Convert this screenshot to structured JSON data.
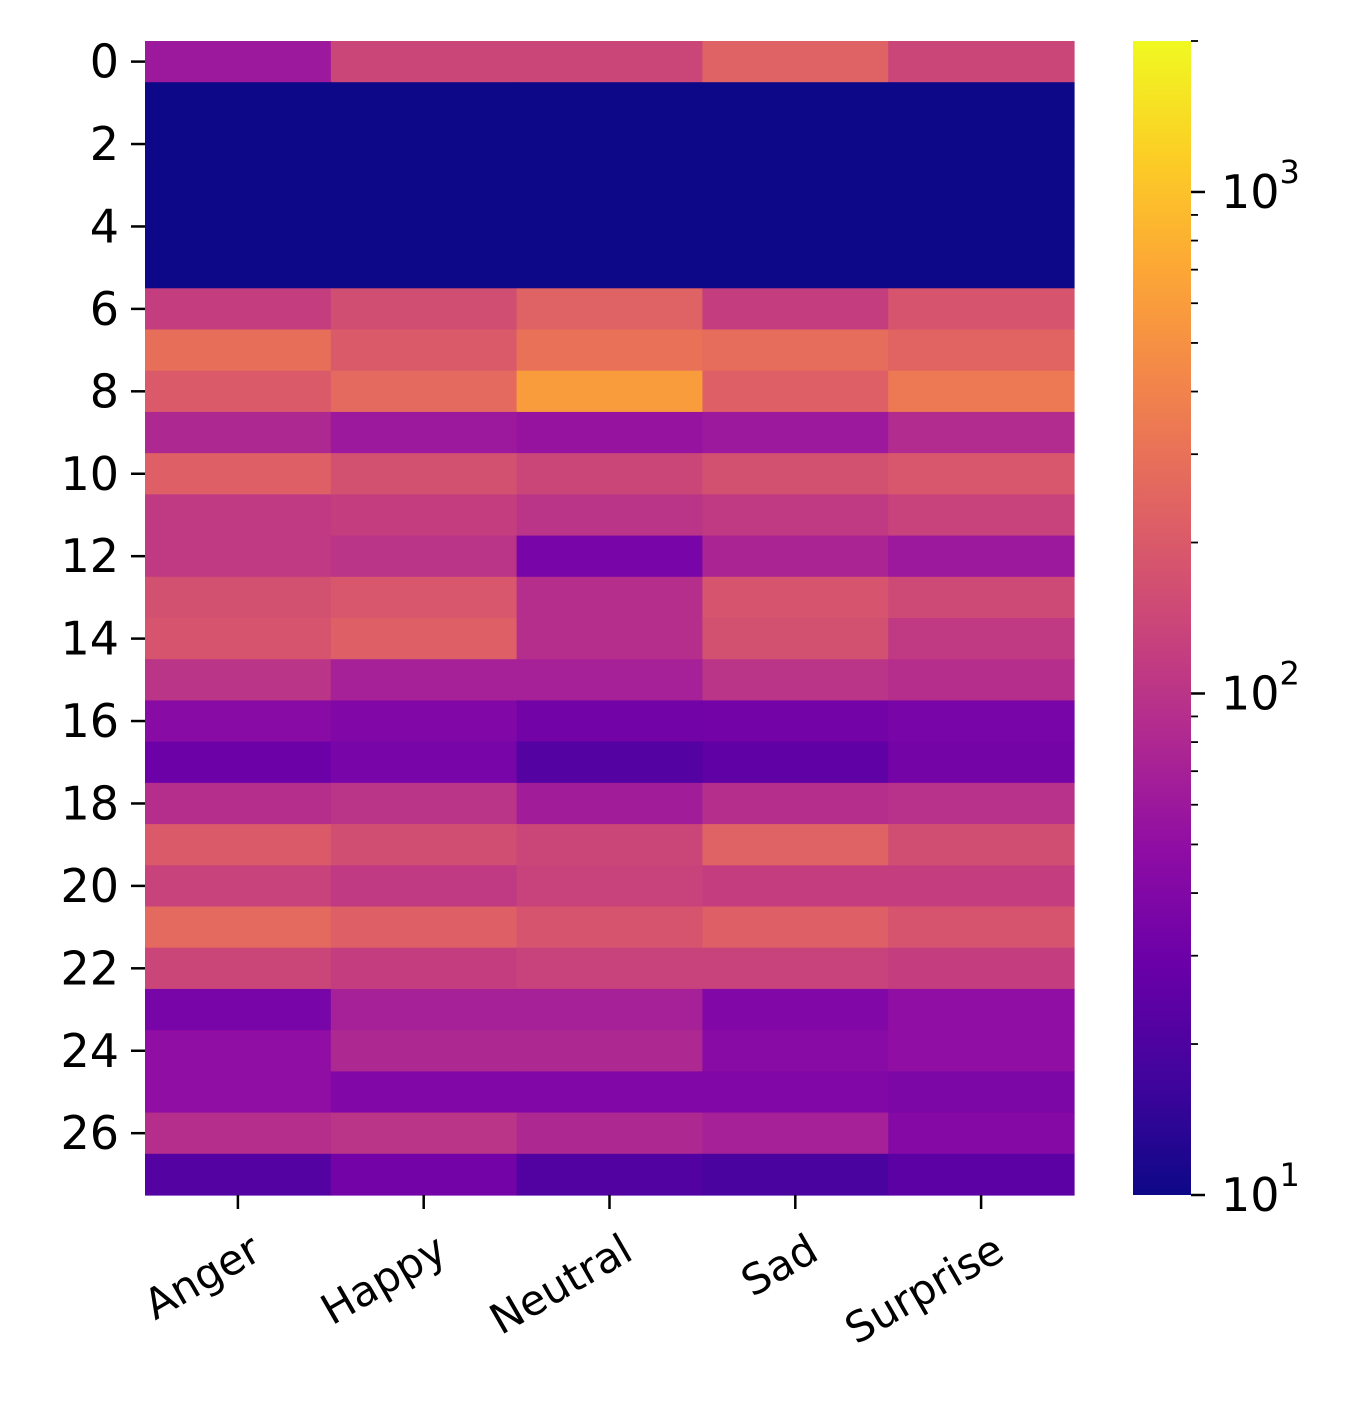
{
  "chart_data": {
    "type": "heatmap",
    "title": "",
    "xlabel": "",
    "ylabel": "",
    "x_categories": [
      "Anger",
      "Happy",
      "Neutral",
      "Sad",
      "Surprise"
    ],
    "y_categories": [
      0,
      1,
      2,
      3,
      4,
      5,
      6,
      7,
      8,
      9,
      10,
      11,
      12,
      13,
      14,
      15,
      16,
      17,
      18,
      19,
      20,
      21,
      22,
      23,
      24,
      25,
      26,
      27
    ],
    "y_tick_labels": [
      "0",
      "2",
      "4",
      "6",
      "8",
      "10",
      "12",
      "14",
      "16",
      "18",
      "20",
      "22",
      "24",
      "26"
    ],
    "values": [
      [
        60,
        140,
        140,
        230,
        140
      ],
      [
        10,
        10,
        10,
        10,
        10
      ],
      [
        10,
        10,
        10,
        10,
        10
      ],
      [
        10,
        10,
        10,
        10,
        10
      ],
      [
        10,
        10,
        10,
        10,
        10
      ],
      [
        10,
        10,
        10,
        10,
        10
      ],
      [
        120,
        160,
        230,
        120,
        180
      ],
      [
        290,
        200,
        300,
        280,
        240
      ],
      [
        200,
        260,
        600,
        220,
        340
      ],
      [
        80,
        60,
        55,
        60,
        85
      ],
      [
        220,
        170,
        140,
        170,
        190
      ],
      [
        110,
        120,
        100,
        110,
        130
      ],
      [
        110,
        100,
        35,
        75,
        60
      ],
      [
        170,
        190,
        90,
        180,
        150
      ],
      [
        180,
        220,
        90,
        170,
        110
      ],
      [
        100,
        70,
        70,
        100,
        90
      ],
      [
        45,
        40,
        32,
        33,
        35
      ],
      [
        30,
        35,
        22,
        25,
        34
      ],
      [
        90,
        100,
        65,
        90,
        95
      ],
      [
        200,
        160,
        140,
        230,
        160
      ],
      [
        130,
        110,
        130,
        120,
        120
      ],
      [
        260,
        220,
        180,
        220,
        180
      ],
      [
        140,
        120,
        130,
        130,
        120
      ],
      [
        35,
        70,
        70,
        40,
        50
      ],
      [
        50,
        80,
        80,
        45,
        50
      ],
      [
        50,
        40,
        40,
        40,
        38
      ],
      [
        90,
        100,
        80,
        70,
        42
      ],
      [
        22,
        33,
        21,
        19,
        24
      ]
    ],
    "color_scale": {
      "type": "log",
      "colormap": "plasma",
      "vmin": 10,
      "vmax": 2000,
      "major_ticks": [
        {
          "value": 10,
          "label": "10",
          "exp": "1"
        },
        {
          "value": 100,
          "label": "10",
          "exp": "2"
        },
        {
          "value": 1000,
          "label": "10",
          "exp": "3"
        }
      ]
    },
    "grid": false,
    "colorbar_position": "right"
  }
}
